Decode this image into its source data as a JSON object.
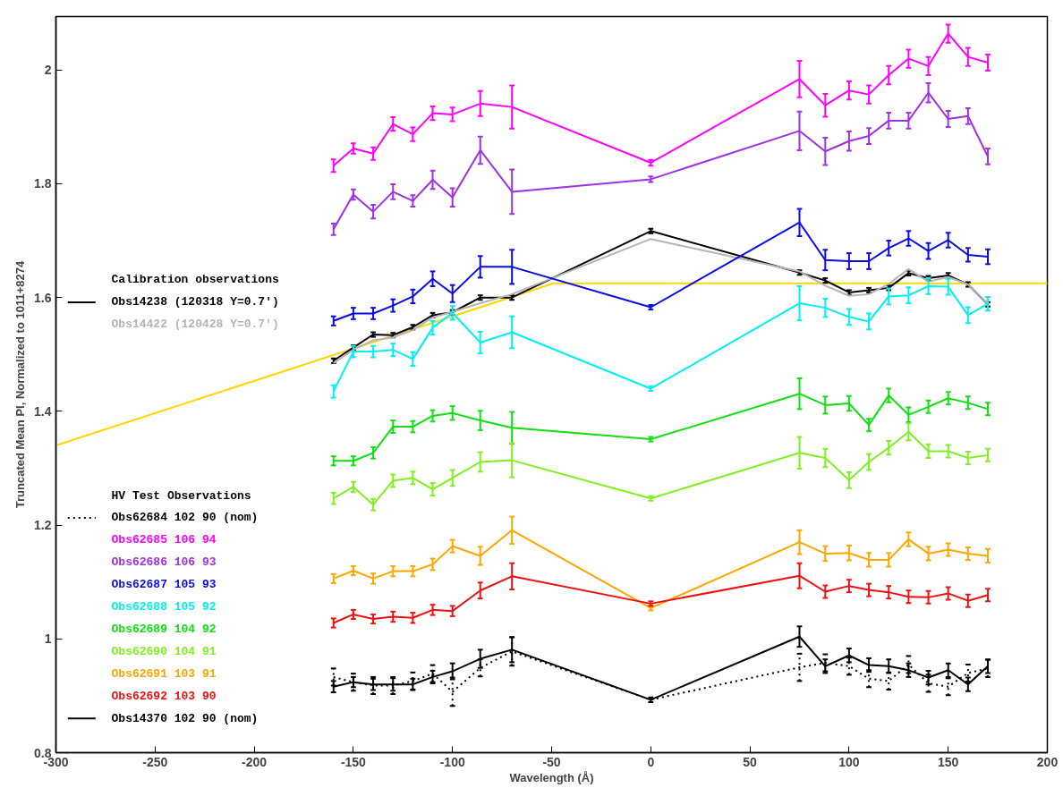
{
  "chart_data": {
    "type": "line",
    "xlabel": "Wavelength (Å)",
    "ylabel": "Truncated Mean PI, Normalized to 1011+8274",
    "x": [
      -160,
      -150,
      -140,
      -130,
      -120,
      -110,
      -100,
      -86,
      -70,
      0,
      75,
      88,
      100,
      110,
      120,
      130,
      140,
      150,
      160,
      170
    ],
    "xlim": [
      -300,
      200
    ],
    "xticks": [
      -300,
      -250,
      -200,
      -150,
      -100,
      -50,
      0,
      50,
      100,
      150,
      200
    ],
    "ylim": [
      0.8,
      2.094
    ],
    "yticks": [
      0.8,
      1,
      1.2,
      1.4,
      1.6,
      1.8,
      2
    ],
    "grid": false,
    "legend": "left",
    "marker": "none",
    "annotations": [
      "Calibration observations",
      "HV Test Observations"
    ],
    "series": [
      {
        "name": "Obs14238 (120318 Y=0.7')",
        "color": "#000000",
        "line_style": "solid",
        "values": [
          1.489,
          1.512,
          1.535,
          1.534,
          1.548,
          1.569,
          1.574,
          1.6,
          1.6,
          1.717,
          1.644,
          1.63,
          1.609,
          1.613,
          1.617,
          1.643,
          1.634,
          1.639,
          1.623,
          1.588
        ],
        "errors": [
          0.004,
          0.004,
          0.004,
          0.004,
          0.004,
          0.004,
          0.004,
          0.004,
          0.004,
          0.004,
          0.004,
          0.004,
          0.004,
          0.004,
          0.004,
          0.004,
          0.004,
          0.004,
          0.004,
          0.004
        ]
      },
      {
        "name": "Obs14422 (120428 Y=0.7')",
        "color": "#b4b4b4",
        "line_style": "solid",
        "values": [
          1.485,
          1.508,
          1.525,
          1.53,
          1.543,
          1.565,
          1.575,
          1.59,
          1.606,
          1.703,
          1.646,
          1.621,
          1.603,
          1.606,
          1.624,
          1.65,
          1.628,
          1.636,
          1.623,
          1.589
        ]
      },
      {
        "name": "Obs62684 102 90 (nom)",
        "color": "#000000",
        "line_style": "dotted",
        "values": [
          0.933,
          0.924,
          0.918,
          0.918,
          0.926,
          0.939,
          0.907,
          0.949,
          0.978,
          0.893,
          0.95,
          0.958,
          0.952,
          0.93,
          0.926,
          0.955,
          0.922,
          0.916,
          0.94,
          0.948
        ],
        "errors": [
          0.015,
          0.015,
          0.015,
          0.015,
          0.015,
          0.015,
          0.025,
          0.015,
          0.025,
          null,
          0.024,
          0.015,
          0.015,
          0.015,
          0.015,
          0.015,
          0.015,
          0.015,
          0.015,
          0.015
        ]
      },
      {
        "name": "Obs62685 106 94",
        "color": "#ff00ff",
        "line_style": "solid",
        "values": [
          1.832,
          1.862,
          1.853,
          1.905,
          1.887,
          1.924,
          1.922,
          1.941,
          1.935,
          1.837,
          1.984,
          1.938,
          1.964,
          1.957,
          1.991,
          2.02,
          2.007,
          2.064,
          2.023,
          2.013
        ],
        "errors": [
          0.011,
          0.009,
          0.011,
          0.012,
          0.012,
          0.012,
          0.012,
          0.022,
          0.038,
          0.005,
          0.032,
          0.02,
          0.016,
          0.016,
          0.016,
          0.016,
          0.016,
          0.016,
          0.016,
          0.014
        ]
      },
      {
        "name": "Obs62686 106 93",
        "color": "#a030e8",
        "line_style": "solid",
        "values": [
          1.72,
          1.781,
          1.751,
          1.786,
          1.77,
          1.807,
          1.776,
          1.859,
          1.786,
          1.808,
          1.893,
          1.857,
          1.875,
          1.884,
          1.911,
          1.911,
          1.96,
          1.914,
          1.919,
          1.848
        ],
        "errors": [
          0.01,
          0.009,
          0.012,
          0.013,
          0.01,
          0.016,
          0.016,
          0.024,
          0.039,
          0.005,
          0.034,
          0.024,
          0.017,
          0.014,
          0.014,
          0.014,
          0.017,
          0.014,
          0.014,
          0.014
        ]
      },
      {
        "name": "Obs62687 105 93",
        "color": "#0a0ae6",
        "line_style": "solid",
        "values": [
          1.559,
          1.572,
          1.572,
          1.586,
          1.602,
          1.633,
          1.607,
          1.654,
          1.654,
          1.583,
          1.732,
          1.666,
          1.664,
          1.664,
          1.687,
          1.704,
          1.682,
          1.701,
          1.675,
          1.672
        ],
        "errors": [
          0.008,
          0.01,
          0.01,
          0.011,
          0.012,
          0.013,
          0.015,
          0.019,
          0.03,
          0.004,
          0.024,
          0.018,
          0.014,
          0.014,
          0.013,
          0.013,
          0.014,
          0.013,
          0.012,
          0.013
        ]
      },
      {
        "name": "Obs62688 105 92",
        "color": "#00f0f0",
        "line_style": "solid",
        "values": [
          1.435,
          1.505,
          1.505,
          1.508,
          1.492,
          1.547,
          1.573,
          1.521,
          1.539,
          1.44,
          1.59,
          1.582,
          1.566,
          1.558,
          1.602,
          1.604,
          1.62,
          1.619,
          1.569,
          1.589
        ],
        "errors": [
          0.011,
          0.01,
          0.01,
          0.011,
          0.012,
          0.012,
          0.012,
          0.019,
          0.028,
          0.004,
          0.03,
          0.016,
          0.014,
          0.014,
          0.014,
          0.014,
          0.014,
          0.014,
          0.014,
          0.012
        ]
      },
      {
        "name": "Obs62689 104 92",
        "color": "#10e010",
        "line_style": "solid",
        "values": [
          1.313,
          1.313,
          1.327,
          1.373,
          1.373,
          1.392,
          1.397,
          1.384,
          1.371,
          1.351,
          1.431,
          1.411,
          1.414,
          1.376,
          1.428,
          1.394,
          1.408,
          1.423,
          1.415,
          1.404
        ],
        "errors": [
          0.008,
          0.008,
          0.01,
          0.011,
          0.01,
          0.01,
          0.012,
          0.017,
          0.028,
          0.004,
          0.027,
          0.015,
          0.013,
          0.011,
          0.012,
          0.013,
          0.011,
          0.011,
          0.011,
          0.011
        ]
      },
      {
        "name": "Obs62690 104 91",
        "color": "#80f020",
        "line_style": "solid",
        "values": [
          1.247,
          1.267,
          1.236,
          1.278,
          1.283,
          1.263,
          1.283,
          1.311,
          1.314,
          1.247,
          1.327,
          1.318,
          1.279,
          1.311,
          1.336,
          1.364,
          1.33,
          1.33,
          1.318,
          1.323
        ],
        "errors": [
          0.01,
          0.009,
          0.01,
          0.011,
          0.011,
          0.011,
          0.014,
          0.017,
          0.03,
          0.004,
          0.028,
          0.016,
          0.014,
          0.014,
          0.012,
          0.015,
          0.012,
          0.011,
          0.011,
          0.011
        ]
      },
      {
        "name": "Obs62691 103 91",
        "color": "#ffa500",
        "line_style": "solid",
        "values": [
          1.106,
          1.12,
          1.106,
          1.119,
          1.119,
          1.131,
          1.163,
          1.146,
          1.191,
          1.054,
          1.17,
          1.15,
          1.151,
          1.139,
          1.139,
          1.175,
          1.15,
          1.157,
          1.15,
          1.146
        ],
        "errors": [
          0.008,
          0.008,
          0.009,
          0.009,
          0.009,
          0.01,
          0.011,
          0.016,
          0.024,
          0.004,
          0.021,
          0.013,
          0.013,
          0.012,
          0.012,
          0.012,
          0.012,
          0.011,
          0.011,
          0.012
        ]
      },
      {
        "name": "Obs62692 103 90",
        "color": "#ee1010",
        "line_style": "solid",
        "values": [
          1.028,
          1.043,
          1.035,
          1.039,
          1.037,
          1.051,
          1.049,
          1.085,
          1.11,
          1.062,
          1.111,
          1.083,
          1.093,
          1.086,
          1.082,
          1.074,
          1.073,
          1.08,
          1.067,
          1.077
        ],
        "errors": [
          0.008,
          0.008,
          0.008,
          0.009,
          0.009,
          0.009,
          0.009,
          0.014,
          0.023,
          0.004,
          0.022,
          0.011,
          0.011,
          0.011,
          0.011,
          0.011,
          0.011,
          0.011,
          0.011,
          0.011
        ]
      },
      {
        "name": "Obs14370 102 90 (nom)",
        "color": "#000000",
        "line_style": "solid",
        "values": [
          0.916,
          0.924,
          0.92,
          0.92,
          0.92,
          0.933,
          0.943,
          0.965,
          0.981,
          0.893,
          1.004,
          0.952,
          0.971,
          0.954,
          0.952,
          0.945,
          0.932,
          0.945,
          0.92,
          0.952
        ],
        "errors": [
          0.01,
          0.009,
          0.01,
          0.011,
          0.01,
          0.011,
          0.014,
          0.016,
          0.022,
          0.004,
          0.018,
          0.012,
          0.012,
          0.012,
          0.012,
          0.012,
          0.012,
          0.012,
          0.012,
          0.012
        ]
      },
      {
        "color": "#ffd700",
        "line_style": "solid",
        "x": [
          -300,
          -49,
          200
        ],
        "values": [
          1.34,
          1.625,
          1.625
        ]
      }
    ]
  }
}
